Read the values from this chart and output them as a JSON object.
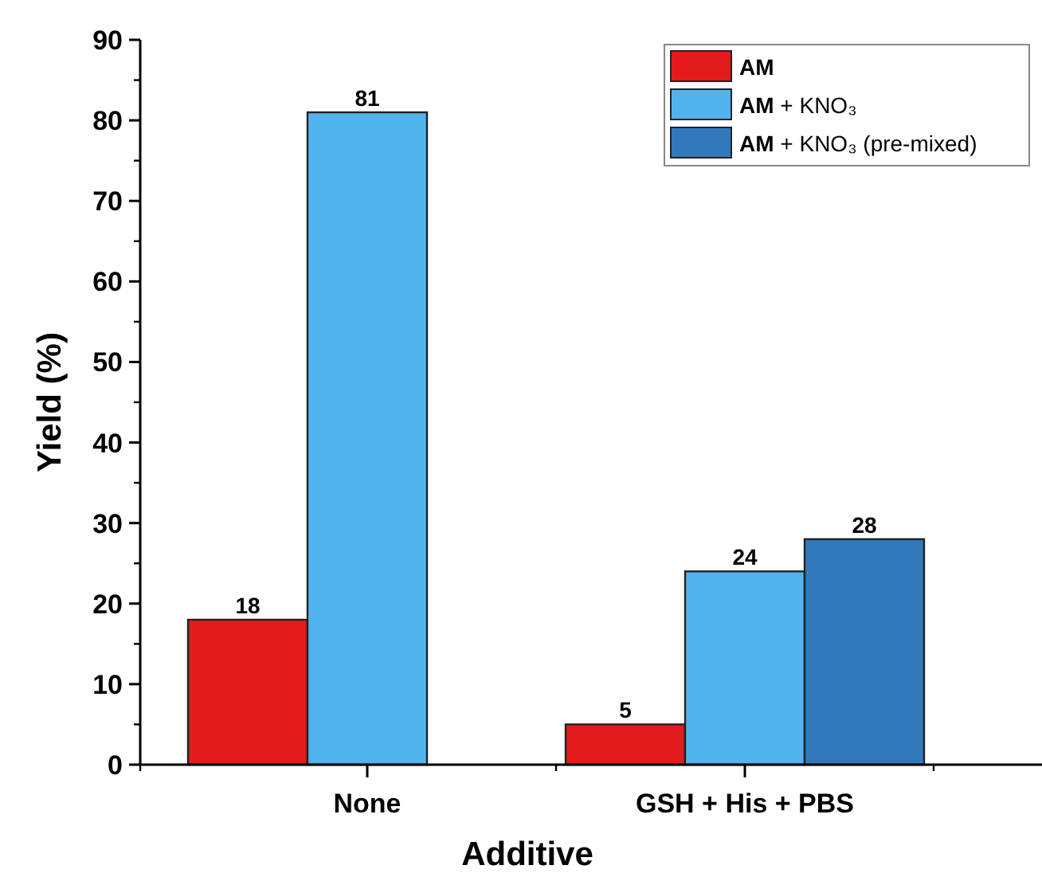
{
  "chart_data": {
    "type": "bar",
    "xlabel": "Additive",
    "ylabel": "Yield (%)",
    "categories": [
      "None",
      "GSH + His + PBS"
    ],
    "series": [
      {
        "name": "AM",
        "color": "#e41a1c",
        "values": [
          18,
          5
        ]
      },
      {
        "name": "AM + KNO₃",
        "color": "#53b3ef",
        "values": [
          81,
          24
        ]
      },
      {
        "name": "AM + KNO₃ (pre-mixed)",
        "color": "#3179bc",
        "values": [
          null,
          28
        ]
      }
    ],
    "ylim": [
      0,
      90
    ],
    "yticks": [
      0,
      10,
      20,
      30,
      40,
      50,
      60,
      70,
      80,
      90
    ],
    "data_labels": true,
    "legend": "top right",
    "grid": false
  }
}
